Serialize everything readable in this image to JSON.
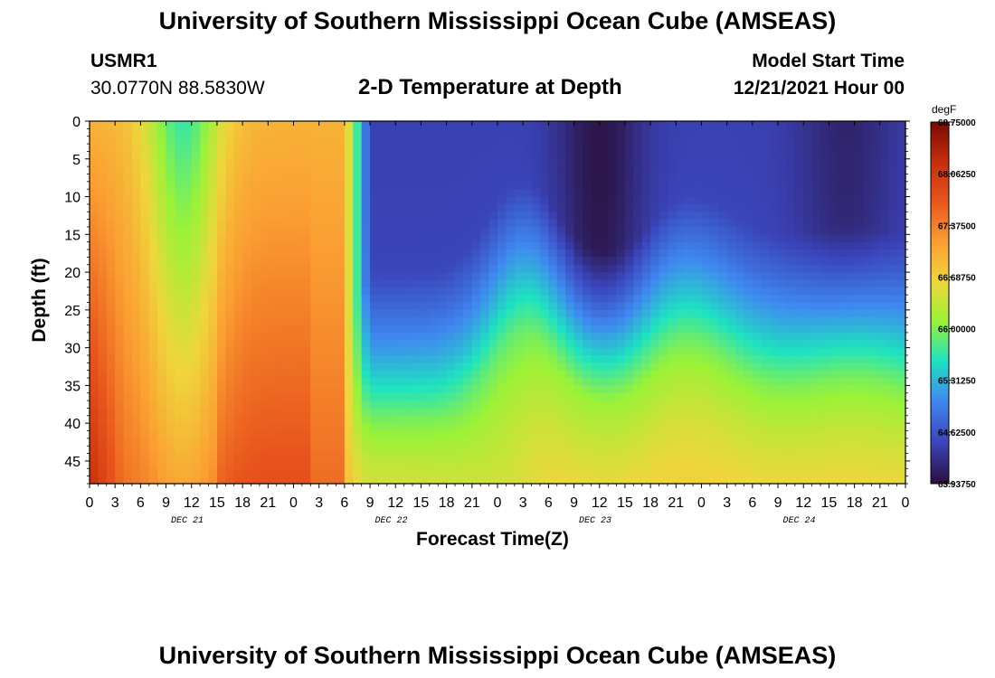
{
  "header": {
    "title": "University of Southern Mississippi Ocean Cube (AMSEAS)",
    "station": "USMR1",
    "coords": "30.0770N  88.5830W",
    "model_label": "Model Start Time",
    "model_start": "12/21/2021 Hour 00",
    "repeat_title": "University of Southern Mississippi Ocean Cube (AMSEAS)"
  },
  "chart_data": {
    "type": "heatmap",
    "title": "2-D Temperature at Depth",
    "xlabel": "Forecast Time(Z)",
    "ylabel": "Depth (ft)",
    "x_ticks": [
      "0",
      "3",
      "6",
      "9",
      "12",
      "15",
      "18",
      "21",
      "0",
      "3",
      "6",
      "9",
      "12",
      "15",
      "18",
      "21",
      "0",
      "3",
      "6",
      "9",
      "12",
      "15",
      "18",
      "21",
      "0",
      "3",
      "6",
      "9",
      "12",
      "15",
      "18",
      "21",
      "0"
    ],
    "x_range_hours": [
      0,
      96
    ],
    "day_labels": [
      "DEC 21",
      "DEC 22",
      "DEC 23",
      "DEC 24"
    ],
    "y_ticks": [
      0,
      5,
      10,
      15,
      20,
      25,
      30,
      35,
      40,
      45
    ],
    "ylim": [
      0,
      48
    ],
    "colorbar": {
      "unit": "degF",
      "tick_labels": [
        "68.75000",
        "68.06250",
        "67.37500",
        "66.68750",
        "66.00000",
        "65.31250",
        "64.62500",
        "63.93750"
      ],
      "min": 63.9375,
      "max": 68.75
    },
    "colors": {
      "c0": "#2a0f3a",
      "c1": "#3a43b8",
      "c2": "#3f88f0",
      "c3": "#1ee3c0",
      "c4": "#9bf237",
      "c5": "#efd63c",
      "c6": "#fb9e32",
      "c7": "#e8551c",
      "c8": "#c52e0c",
      "c9": "#7a0a03"
    },
    "temperature_profile_description": "Warm (66.5-68.7 degF) throughout depth during Dec 21; sharp cooling after ~Dec 22 06Z with cold surface layer (64-65 degF) and warmer bottom water; coldest surface near Dec 23 12Z"
  }
}
